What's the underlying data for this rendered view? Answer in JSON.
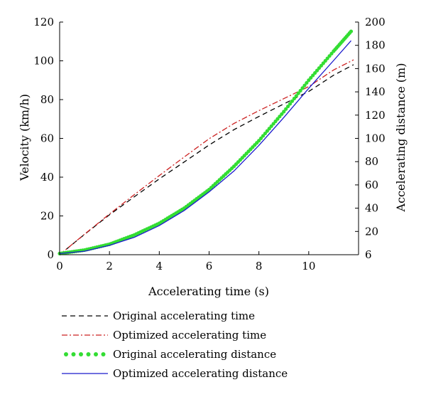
{
  "chart_data": {
    "type": "line",
    "xlabel": "Accelerating time (s)",
    "ylabel_left": "Velocity (km/h)",
    "ylabel_right": "Accelerating distance (m)",
    "xlim": [
      0,
      12
    ],
    "xticks": [
      0,
      2,
      4,
      6,
      8,
      10
    ],
    "ylim_left": [
      0,
      120
    ],
    "yticks_left": [
      0,
      20,
      40,
      60,
      80,
      100,
      120
    ],
    "ylim_right": [
      0,
      200
    ],
    "yticks_right": [
      6,
      20,
      40,
      60,
      80,
      100,
      120,
      140,
      160,
      180,
      200
    ],
    "grid": false,
    "legend_position": "bottom",
    "series": [
      {
        "name": "Original accelerating time",
        "axis": "left",
        "style": "dashed",
        "color": "#000000",
        "x": [
          0,
          1,
          2,
          3,
          4,
          5,
          6,
          7,
          8,
          9,
          10,
          11,
          11.8
        ],
        "y": [
          0,
          10.5,
          20.6,
          29.9,
          39.1,
          47.8,
          56.6,
          64.5,
          71.3,
          77.8,
          84.2,
          92.6,
          98.0
        ]
      },
      {
        "name": "Optimized accelerating time",
        "axis": "left",
        "style": "dashdot",
        "color": "#cc2222",
        "x": [
          0,
          1,
          2,
          3,
          4,
          5,
          6,
          7,
          8,
          9,
          10,
          11,
          11.8
        ],
        "y": [
          0,
          10.6,
          21.0,
          31.0,
          40.8,
          50.4,
          59.8,
          67.7,
          74.3,
          80.5,
          86.7,
          95.3,
          100.5
        ]
      },
      {
        "name": "Original accelerating distance",
        "axis": "right",
        "style": "dotted",
        "color": "#33dd33",
        "x": [
          0,
          1,
          2,
          3,
          4,
          5,
          6,
          7,
          8,
          9,
          10,
          11,
          11.7
        ],
        "y": [
          1,
          4,
          9,
          17,
          27,
          40,
          56,
          76,
          98,
          123,
          150,
          175,
          192
        ]
      },
      {
        "name": "Optimized accelerating distance",
        "axis": "right",
        "style": "solid",
        "color": "#1a1acc",
        "x": [
          0,
          1,
          2,
          3,
          4,
          5,
          6,
          7,
          8,
          9,
          10,
          11,
          11.7
        ],
        "y": [
          1,
          3,
          8,
          15,
          25,
          38,
          54,
          72,
          94,
          118,
          143,
          167,
          184
        ]
      }
    ]
  }
}
